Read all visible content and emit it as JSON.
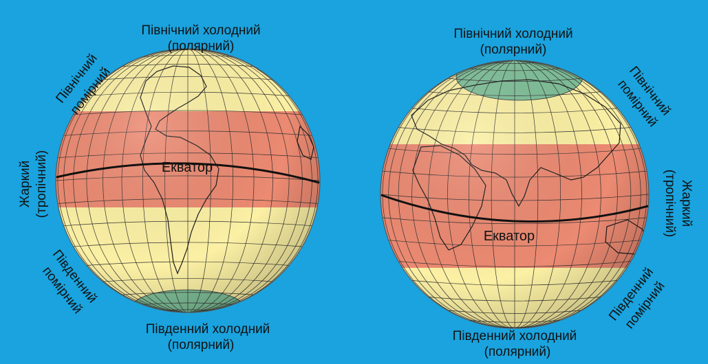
{
  "colors": {
    "background": "#1aa3de",
    "hot_zone": "#ec8a72",
    "temperate_zone": "#fbf0a4",
    "cold_zone": "#7fbf98",
    "grid": "#2f2f2f",
    "coastline": "#1a1a1a",
    "equator": "#111111"
  },
  "left_globe": {
    "north_cold": [
      "Північний холодний",
      "(полярний)"
    ],
    "north_temperate": [
      "Північний",
      "помірний"
    ],
    "hot": [
      "Жаркий",
      "(тропічний)"
    ],
    "south_temperate": [
      "Південний",
      "помірний"
    ],
    "south_cold": [
      "Південний холодний",
      "(полярний)"
    ],
    "equator": "Екватор"
  },
  "right_globe": {
    "north_cold": [
      "Північний холодний",
      "(полярний)"
    ],
    "north_temperate": [
      "Північний",
      "помірний"
    ],
    "hot": [
      "Жаркий",
      "(тропічний)"
    ],
    "south_temperate": [
      "Південний",
      "помірний"
    ],
    "south_cold": [
      "Південний холодний",
      "(полярний)"
    ],
    "equator": "Екватор"
  }
}
